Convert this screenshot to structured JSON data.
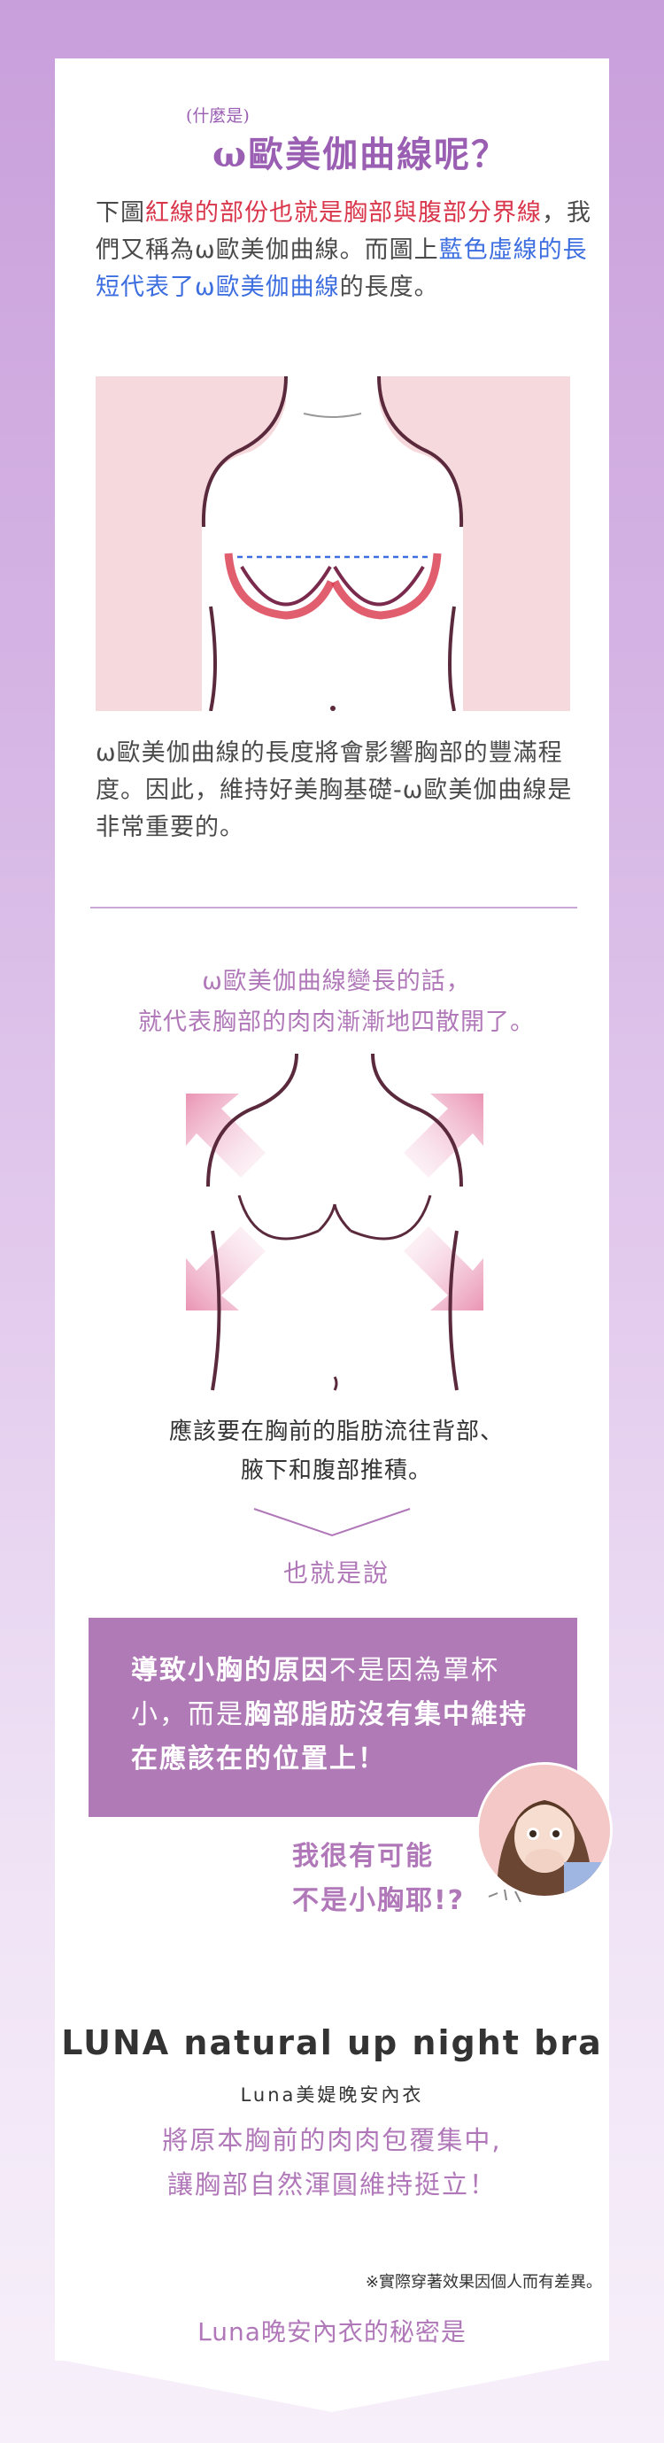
{
  "section1": {
    "title_small": "(什麼是)",
    "title_main": "ω歐美伽曲線呢？",
    "para": [
      {
        "t": "下圖",
        "c": ""
      },
      {
        "t": "紅線的部份也就是胸部與腹部分界線",
        "c": "red"
      },
      {
        "t": "，我們又稱為ω歐美伽曲線。而圖上",
        "c": ""
      },
      {
        "t": "藍色虛線的長短代表了ω歐美伽曲線",
        "c": "blue"
      },
      {
        "t": "的長度。",
        "c": ""
      }
    ],
    "para2": "ω歐美伽曲線的長度將會影響胸部的豐滿程度。因此，維持好美胸基礎-ω歐美伽曲線是非常重要的。"
  },
  "section2": {
    "heading_line1": "ω歐美伽曲線變長的話，",
    "heading_line2": "就代表胸部的肉肉漸漸地四散開了。",
    "para_line1": "應該要在胸前的脂肪流往背部、",
    "para_line2": "腋下和腹部推積。",
    "that_is": "也就是說"
  },
  "highlight": {
    "parts": [
      {
        "t": "導致小胸的原因",
        "bold": true
      },
      {
        "t": "不是因為罩杯小，而是",
        "bold": false
      },
      {
        "t": "胸部脂肪沒有集中維持在應該在的位置上！",
        "bold": true
      }
    ],
    "quote_line1": "我很有可能",
    "quote_line2": "不是小胸耶!?"
  },
  "product": {
    "title": "LUNA natural up night bra",
    "subtitle": "Luna美媞晚安內衣",
    "desc_line1": "將原本胸前的肉肉包覆集中,",
    "desc_line2": "讓胸部自然渾圓維持挺立！",
    "note": "※實際穿著效果因個人而有差異。",
    "secret": "Luna晚安內衣的秘密是"
  },
  "colors": {
    "accent": "#b078b8",
    "red_line": "#d9364b",
    "blue_line": "#3d6ee0",
    "box_bg": "#b07ab7"
  }
}
